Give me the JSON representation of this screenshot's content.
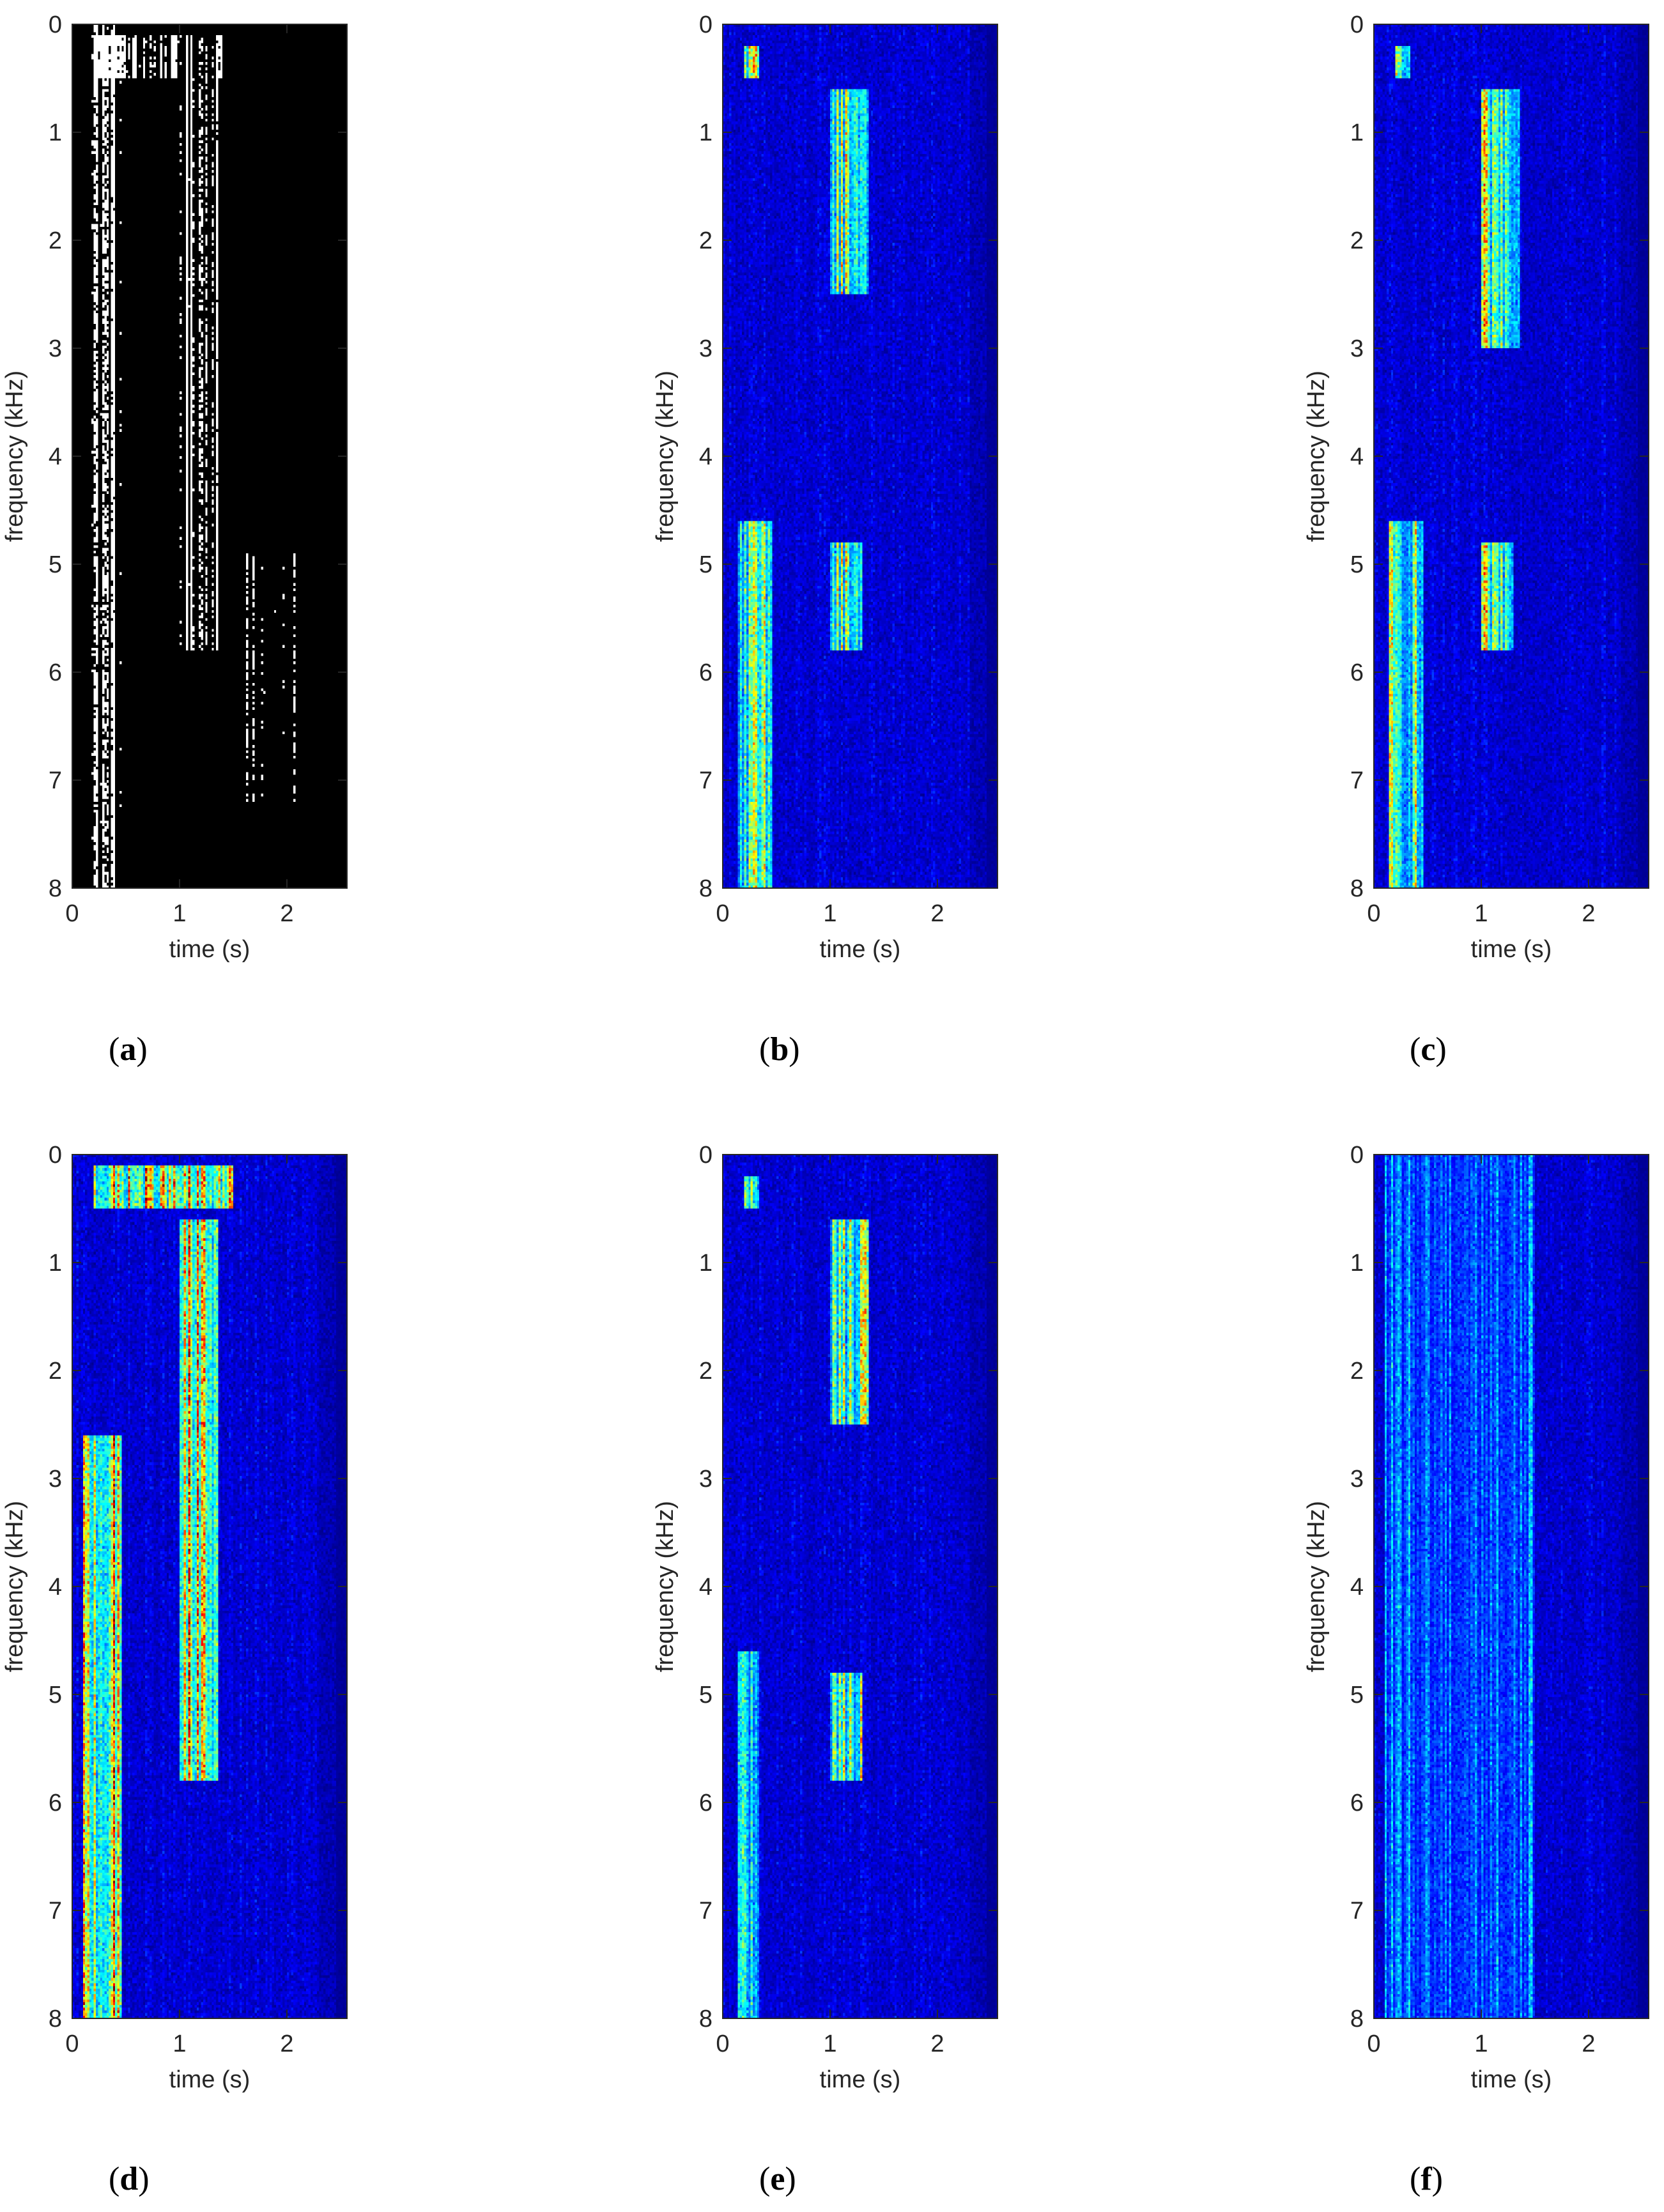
{
  "colors": {
    "jet": [
      "#00008f",
      "#0000ff",
      "#0080ff",
      "#00ffff",
      "#80ff80",
      "#ffff00",
      "#ff8000",
      "#ff0000",
      "#800000"
    ],
    "binary": [
      "#000000",
      "#ffffff"
    ]
  },
  "chart_data": [
    {
      "id": "a",
      "caption": "a",
      "type": "heatmap",
      "colormap": "binary",
      "xlabel": "time (s)",
      "ylabel": "frequency (kHz)",
      "xlim": [
        0,
        2.56
      ],
      "ylim": [
        8,
        0
      ],
      "xticks": [
        "0",
        "1",
        "2"
      ],
      "yticks": [
        "0",
        "1",
        "2",
        "3",
        "4",
        "5",
        "6",
        "7",
        "8"
      ],
      "energy_bands": [
        {
          "t": [
            0.1,
            0.45
          ],
          "f": [
            0,
            8
          ],
          "level": 0.7
        },
        {
          "t": [
            1.0,
            1.35
          ],
          "f": [
            0.5,
            5.8
          ],
          "level": 0.8
        },
        {
          "t": [
            0.2,
            1.4
          ],
          "f": [
            0.1,
            0.5
          ],
          "level": 0.75
        },
        {
          "t": [
            1.6,
            2.1
          ],
          "f": [
            4.9,
            7.2
          ],
          "level": 0.45
        }
      ]
    },
    {
      "id": "b",
      "caption": "b",
      "type": "heatmap",
      "colormap": "jet",
      "xlabel": "time (s)",
      "ylabel": "frequency (kHz)",
      "xlim": [
        0,
        2.56
      ],
      "ylim": [
        8,
        0
      ],
      "xticks": [
        "0",
        "1",
        "2"
      ],
      "yticks": [
        "0",
        "1",
        "2",
        "3",
        "4",
        "5",
        "6",
        "7",
        "8"
      ],
      "energy_bands": [
        {
          "t": [
            0.15,
            0.45
          ],
          "f": [
            4.6,
            8
          ],
          "level": 0.7
        },
        {
          "t": [
            1.0,
            1.35
          ],
          "f": [
            0.6,
            2.5
          ],
          "level": 0.8
        },
        {
          "t": [
            1.0,
            1.3
          ],
          "f": [
            4.8,
            5.8
          ],
          "level": 0.8
        },
        {
          "t": [
            0.2,
            0.35
          ],
          "f": [
            0.2,
            0.5
          ],
          "level": 0.85
        }
      ]
    },
    {
      "id": "c",
      "caption": "c",
      "type": "heatmap",
      "colormap": "jet",
      "xlabel": "time (s)",
      "ylabel": "frequency (kHz)",
      "xlim": [
        0,
        2.56
      ],
      "ylim": [
        8,
        0
      ],
      "xticks": [
        "0",
        "1",
        "2"
      ],
      "yticks": [
        "0",
        "1",
        "2",
        "3",
        "4",
        "5",
        "6",
        "7",
        "8"
      ],
      "energy_bands": [
        {
          "t": [
            0.15,
            0.45
          ],
          "f": [
            4.6,
            8
          ],
          "level": 0.7
        },
        {
          "t": [
            1.0,
            1.35
          ],
          "f": [
            0.6,
            3.0
          ],
          "level": 0.8
        },
        {
          "t": [
            1.0,
            1.3
          ],
          "f": [
            4.8,
            5.8
          ],
          "level": 0.8
        },
        {
          "t": [
            0.2,
            0.35
          ],
          "f": [
            0.2,
            0.5
          ],
          "level": 0.85
        }
      ]
    },
    {
      "id": "d",
      "caption": "d",
      "type": "heatmap",
      "colormap": "jet",
      "xlabel": "time (s)",
      "ylabel": "frequency (kHz)",
      "xlim": [
        0,
        2.56
      ],
      "ylim": [
        8,
        0
      ],
      "xticks": [
        "0",
        "1",
        "2"
      ],
      "yticks": [
        "0",
        "1",
        "2",
        "3",
        "4",
        "5",
        "6",
        "7",
        "8"
      ],
      "energy_bands": [
        {
          "t": [
            0.1,
            0.45
          ],
          "f": [
            2.6,
            8
          ],
          "level": 0.95
        },
        {
          "t": [
            1.0,
            1.35
          ],
          "f": [
            0.6,
            5.8
          ],
          "level": 0.95
        },
        {
          "t": [
            0.2,
            1.5
          ],
          "f": [
            0.1,
            0.5
          ],
          "level": 0.95
        }
      ]
    },
    {
      "id": "e",
      "caption": "e",
      "type": "heatmap",
      "colormap": "jet",
      "xlabel": "time (s)",
      "ylabel": "frequency (kHz)",
      "xlim": [
        0,
        2.56
      ],
      "ylim": [
        8,
        0
      ],
      "xticks": [
        "0",
        "1",
        "2"
      ],
      "yticks": [
        "0",
        "1",
        "2",
        "3",
        "4",
        "5",
        "6",
        "7",
        "8"
      ],
      "energy_bands": [
        {
          "t": [
            0.15,
            0.35
          ],
          "f": [
            4.6,
            8
          ],
          "level": 0.6
        },
        {
          "t": [
            1.0,
            1.35
          ],
          "f": [
            0.6,
            2.5
          ],
          "level": 0.7
        },
        {
          "t": [
            1.0,
            1.3
          ],
          "f": [
            4.8,
            5.8
          ],
          "level": 0.7
        },
        {
          "t": [
            0.2,
            0.35
          ],
          "f": [
            0.2,
            0.5
          ],
          "level": 0.85
        }
      ]
    },
    {
      "id": "f",
      "caption": "f",
      "type": "heatmap",
      "colormap": "jet",
      "xlabel": "time (s)",
      "ylabel": "frequency (kHz)",
      "xlim": [
        0,
        2.56
      ],
      "ylim": [
        8,
        0
      ],
      "xticks": [
        "0",
        "1",
        "2"
      ],
      "yticks": [
        "0",
        "1",
        "2",
        "3",
        "4",
        "5",
        "6",
        "7",
        "8"
      ],
      "energy_bands": [
        {
          "t": [
            0.1,
            1.5
          ],
          "f": [
            0,
            8
          ],
          "level": 0.3
        }
      ]
    }
  ]
}
